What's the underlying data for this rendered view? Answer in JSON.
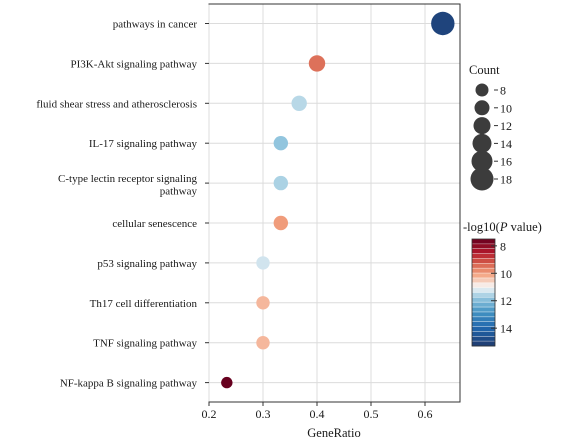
{
  "chart_data": {
    "type": "scatter",
    "xlabel": "GeneRatio",
    "xlim": [
      0.2,
      0.65
    ],
    "x_ticks": [
      0.2,
      0.3,
      0.4,
      0.5,
      0.6
    ],
    "x_tick_labels": [
      "0.2",
      "0.3",
      "0.4",
      "0.5",
      "0.6"
    ],
    "grid": true,
    "legend_position": "right",
    "categories": [
      "pathways in cancer",
      "PI3K-Akt signaling pathway",
      "fluid shear stress and atherosclerosis",
      "IL-17 signaling pathway",
      "C-type lectin receptor signaling pathway",
      "cellular senescence",
      "p53 signaling pathway",
      "Th17 cell differentiation",
      "TNF signaling pathway",
      "NF-kappa B signaling pathway"
    ],
    "category_label_lines": [
      [
        "pathways in cancer"
      ],
      [
        "PI3K-Akt signaling pathway"
      ],
      [
        "fluid shear stress and atherosclerosis"
      ],
      [
        "IL-17 signaling pathway"
      ],
      [
        "C-type lectin receptor signaling",
        "pathway"
      ],
      [
        "cellular senescence"
      ],
      [
        "p53 signaling pathway"
      ],
      [
        "Th17 cell differentiation"
      ],
      [
        "TNF signaling pathway"
      ],
      [
        "NF-kappa B signaling pathway"
      ]
    ],
    "gene_ratio": [
      0.633,
      0.4,
      0.367,
      0.333,
      0.333,
      0.333,
      0.3,
      0.3,
      0.3,
      0.233
    ],
    "count": [
      19,
      12,
      11,
      10,
      10,
      10,
      9,
      9,
      9,
      7
    ],
    "neg_log10_p": [
      15,
      9.5,
      11.5,
      11.8,
      11.6,
      10.0,
      11.3,
      10.3,
      10.3,
      7.5
    ],
    "size_legend": {
      "title": "Count",
      "values": [
        8,
        10,
        12,
        14,
        16,
        18
      ],
      "labels": [
        "8",
        "10",
        "12",
        "14",
        "16",
        "18"
      ]
    },
    "color_legend": {
      "title_prefix": "-log10(",
      "title_italic": "P",
      "title_suffix": " value)",
      "range": [
        7.5,
        15.3
      ],
      "ticks": [
        8,
        10,
        12,
        14
      ],
      "tick_labels": [
        "8",
        "10",
        "12",
        "14"
      ],
      "color_low": "#67001f",
      "color_mid": "#f7f7f7",
      "color_high": "#1f3a6e"
    }
  }
}
